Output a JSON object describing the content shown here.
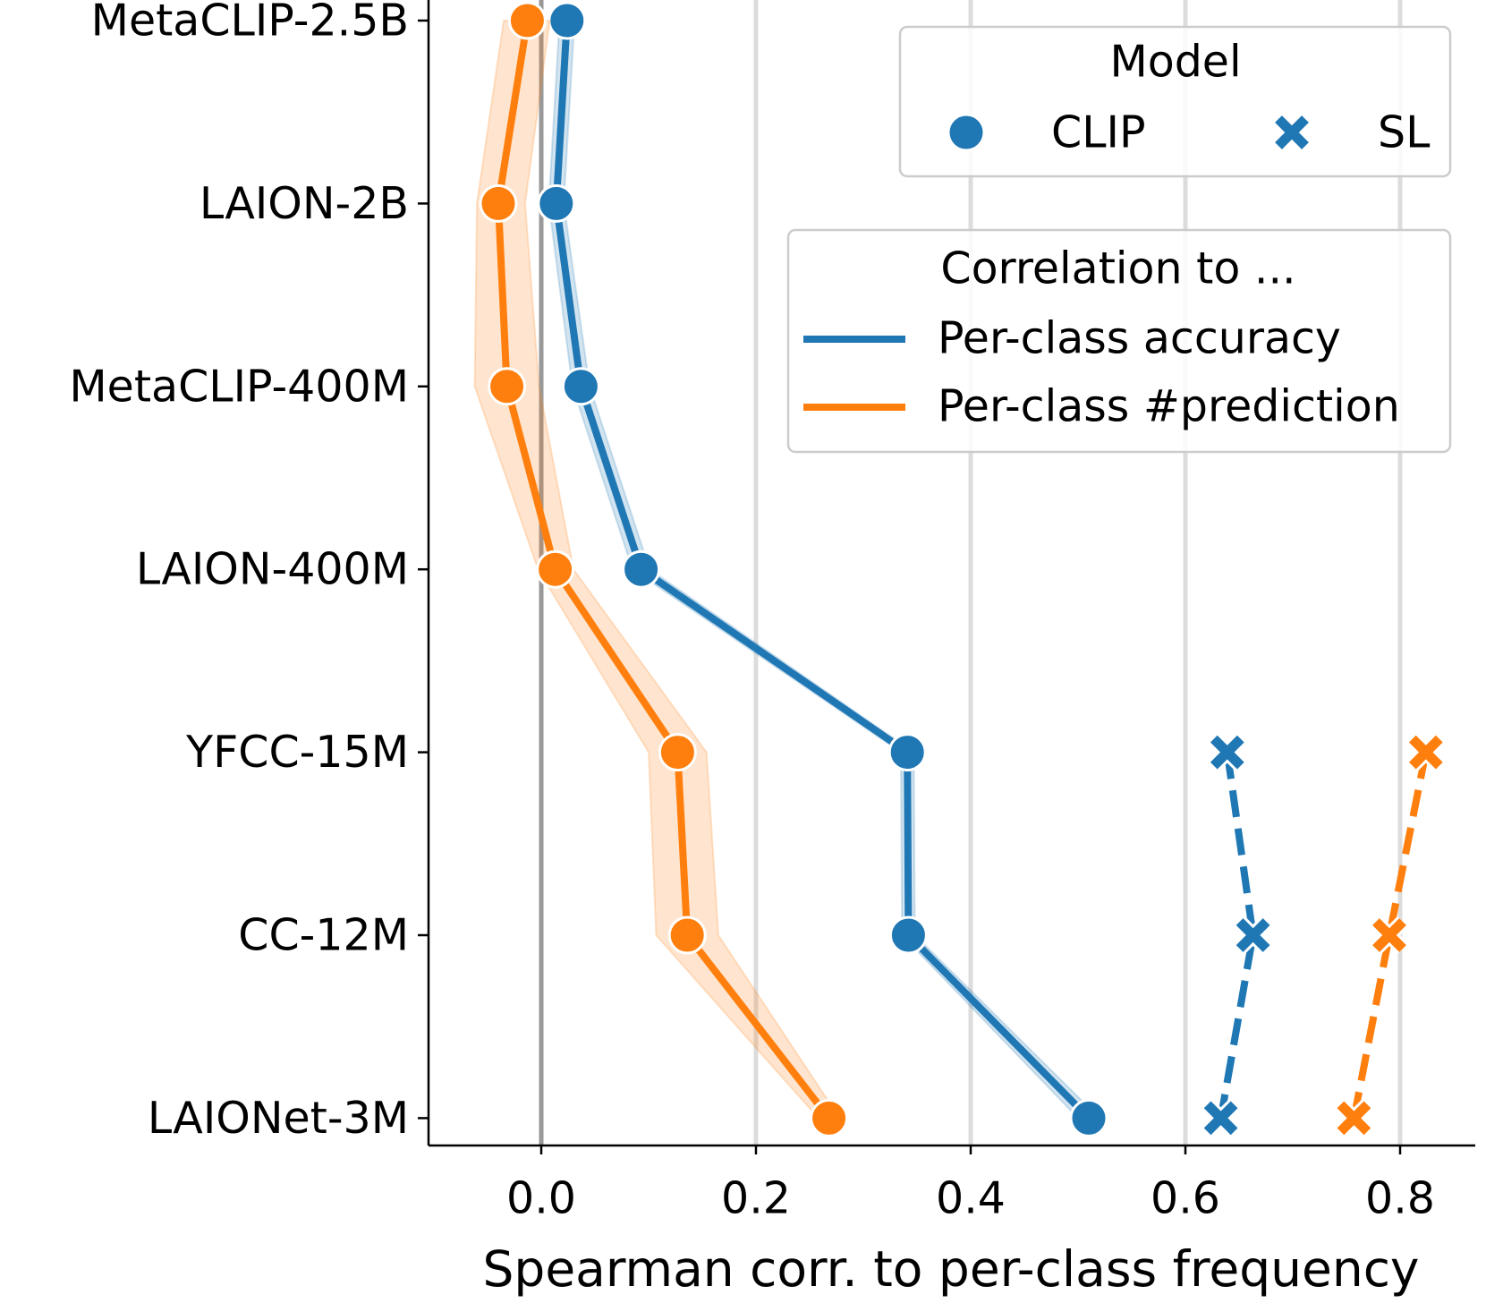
{
  "chart_data": {
    "type": "line",
    "xlabel": "Spearman corr. to per-class frequency",
    "categories": [
      "MetaCLIP-2.5B",
      "LAION-2B",
      "MetaCLIP-400M",
      "LAION-400M",
      "YFCC-15M",
      "CC-12M",
      "LAIONet-3M"
    ],
    "xlim": [
      -0.105,
      0.87
    ],
    "xticks": [
      {
        "value": 0,
        "label": "0.0"
      },
      0.2,
      0.4,
      0.6,
      0.8
    ],
    "grid": true,
    "series": [
      {
        "name": "Per-class accuracy",
        "model": "CLIP",
        "color": "#1f77b4",
        "linestyle": "solid",
        "marker": "circle",
        "values": [
          0.024,
          0.014,
          0.037,
          0.093,
          0.341,
          0.342,
          0.51
        ],
        "ci_low": [
          0.017,
          0.007,
          0.029,
          0.085,
          0.335,
          0.336,
          0.5
        ],
        "ci_high": [
          0.031,
          0.021,
          0.045,
          0.101,
          0.347,
          0.348,
          0.52
        ]
      },
      {
        "name": "Per-class #prediction",
        "model": "CLIP",
        "color": "#ff7f0e",
        "linestyle": "solid",
        "marker": "circle",
        "values": [
          -0.013,
          -0.04,
          -0.032,
          0.013,
          0.127,
          0.136,
          0.268
        ],
        "ci_low": [
          -0.035,
          -0.06,
          -0.062,
          -0.003,
          0.1,
          0.107,
          0.258
        ],
        "ci_high": [
          0.008,
          -0.015,
          -0.002,
          0.03,
          0.154,
          0.165,
          0.278
        ]
      },
      {
        "name": "Per-class accuracy",
        "model": "SL",
        "color": "#1f77b4",
        "linestyle": "dashed",
        "marker": "x",
        "values": [
          null,
          null,
          null,
          null,
          0.639,
          0.663,
          0.633
        ]
      },
      {
        "name": "Per-class #prediction",
        "model": "SL",
        "color": "#ff7f0e",
        "linestyle": "dashed",
        "marker": "x",
        "values": [
          null,
          null,
          null,
          null,
          0.824,
          0.79,
          0.757
        ]
      }
    ],
    "legends": [
      {
        "title": "Model",
        "entries": [
          "CLIP",
          "SL"
        ]
      },
      {
        "title": "Correlation to ...",
        "entries": [
          "Per-class accuracy",
          "Per-class #prediction"
        ]
      }
    ]
  }
}
